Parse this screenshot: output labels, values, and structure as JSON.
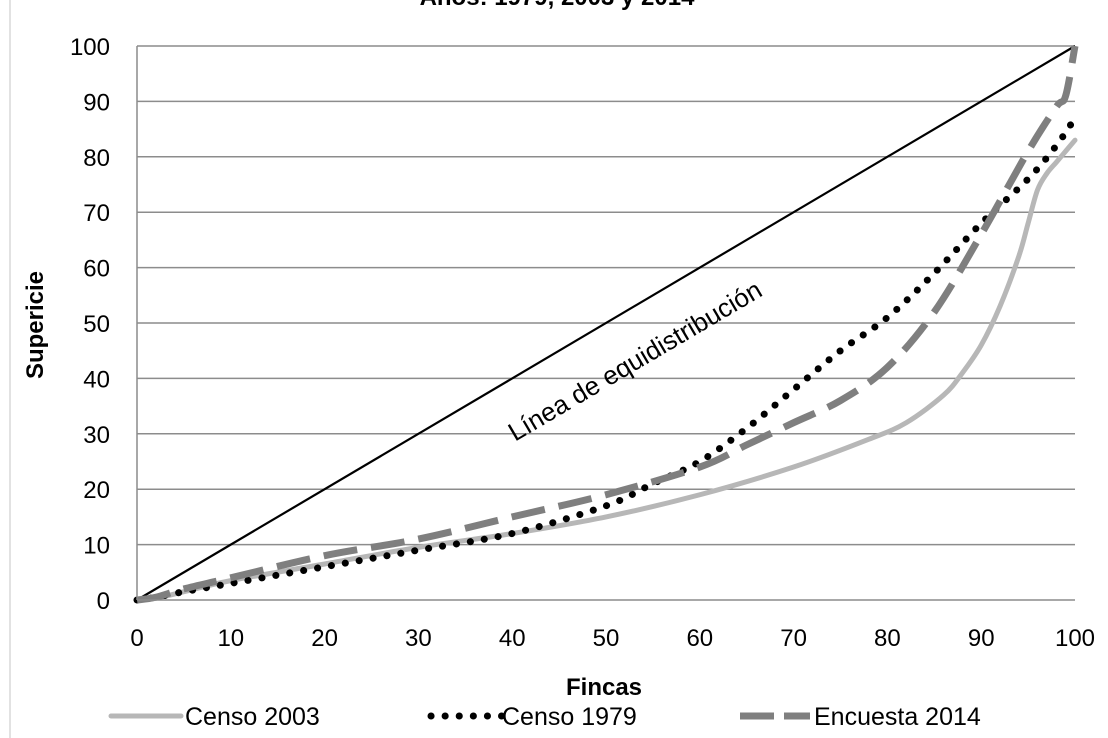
{
  "chart_data": {
    "type": "line",
    "title": "Años: 1979, 2003 y 2014",
    "xlabel": "Fincas",
    "ylabel": "Supericie",
    "xlim": [
      0,
      100
    ],
    "ylim": [
      0,
      100
    ],
    "xticks": [
      0,
      10,
      20,
      30,
      40,
      50,
      60,
      70,
      80,
      90,
      100
    ],
    "yticks": [
      0,
      10,
      20,
      30,
      40,
      50,
      60,
      70,
      80,
      90,
      100
    ],
    "grid": "horizontal",
    "legend_position": "bottom",
    "annotations": [
      {
        "text": "Línea de equidistribución",
        "x": 54,
        "y": 40
      }
    ],
    "series": [
      {
        "name": "Línea de equidistribución",
        "style": "solid",
        "color": "#000000",
        "x": [
          0,
          100
        ],
        "y": [
          0,
          100
        ]
      },
      {
        "name": "Censo 2003",
        "style": "solid",
        "color": "#b7b7b7",
        "x": [
          0,
          2,
          5,
          10,
          20,
          30,
          40,
          50,
          60,
          70,
          78,
          82,
          86,
          88,
          90,
          92,
          94,
          95,
          96,
          97,
          98,
          99,
          100
        ],
        "y": [
          0,
          0.3,
          1.5,
          3.5,
          6.5,
          9.5,
          12,
          15,
          19,
          24,
          29,
          32,
          37,
          41,
          46,
          53,
          62,
          68,
          74,
          77,
          79,
          81,
          83
        ]
      },
      {
        "name": "Censo 1979",
        "style": "dotted",
        "color": "#000000",
        "x": [
          0,
          2,
          5,
          10,
          20,
          30,
          40,
          50,
          55,
          60,
          65,
          70,
          75,
          80,
          85,
          90,
          95,
          98,
          100
        ],
        "y": [
          0,
          0.5,
          1.5,
          3,
          6,
          9,
          12,
          17,
          21,
          25,
          31,
          38,
          45,
          51,
          59,
          68,
          76,
          82,
          87
        ]
      },
      {
        "name": "Encuesta 2014",
        "style": "dashed",
        "color": "#7f7f7f",
        "x": [
          0,
          2,
          5,
          10,
          20,
          30,
          40,
          50,
          60,
          65,
          70,
          75,
          80,
          85,
          90,
          95,
          98,
          99,
          100
        ],
        "y": [
          0,
          0.5,
          2,
          4,
          8,
          11,
          15,
          19,
          24,
          28,
          32,
          36,
          42,
          52,
          66,
          81,
          89,
          91,
          100
        ]
      }
    ]
  }
}
